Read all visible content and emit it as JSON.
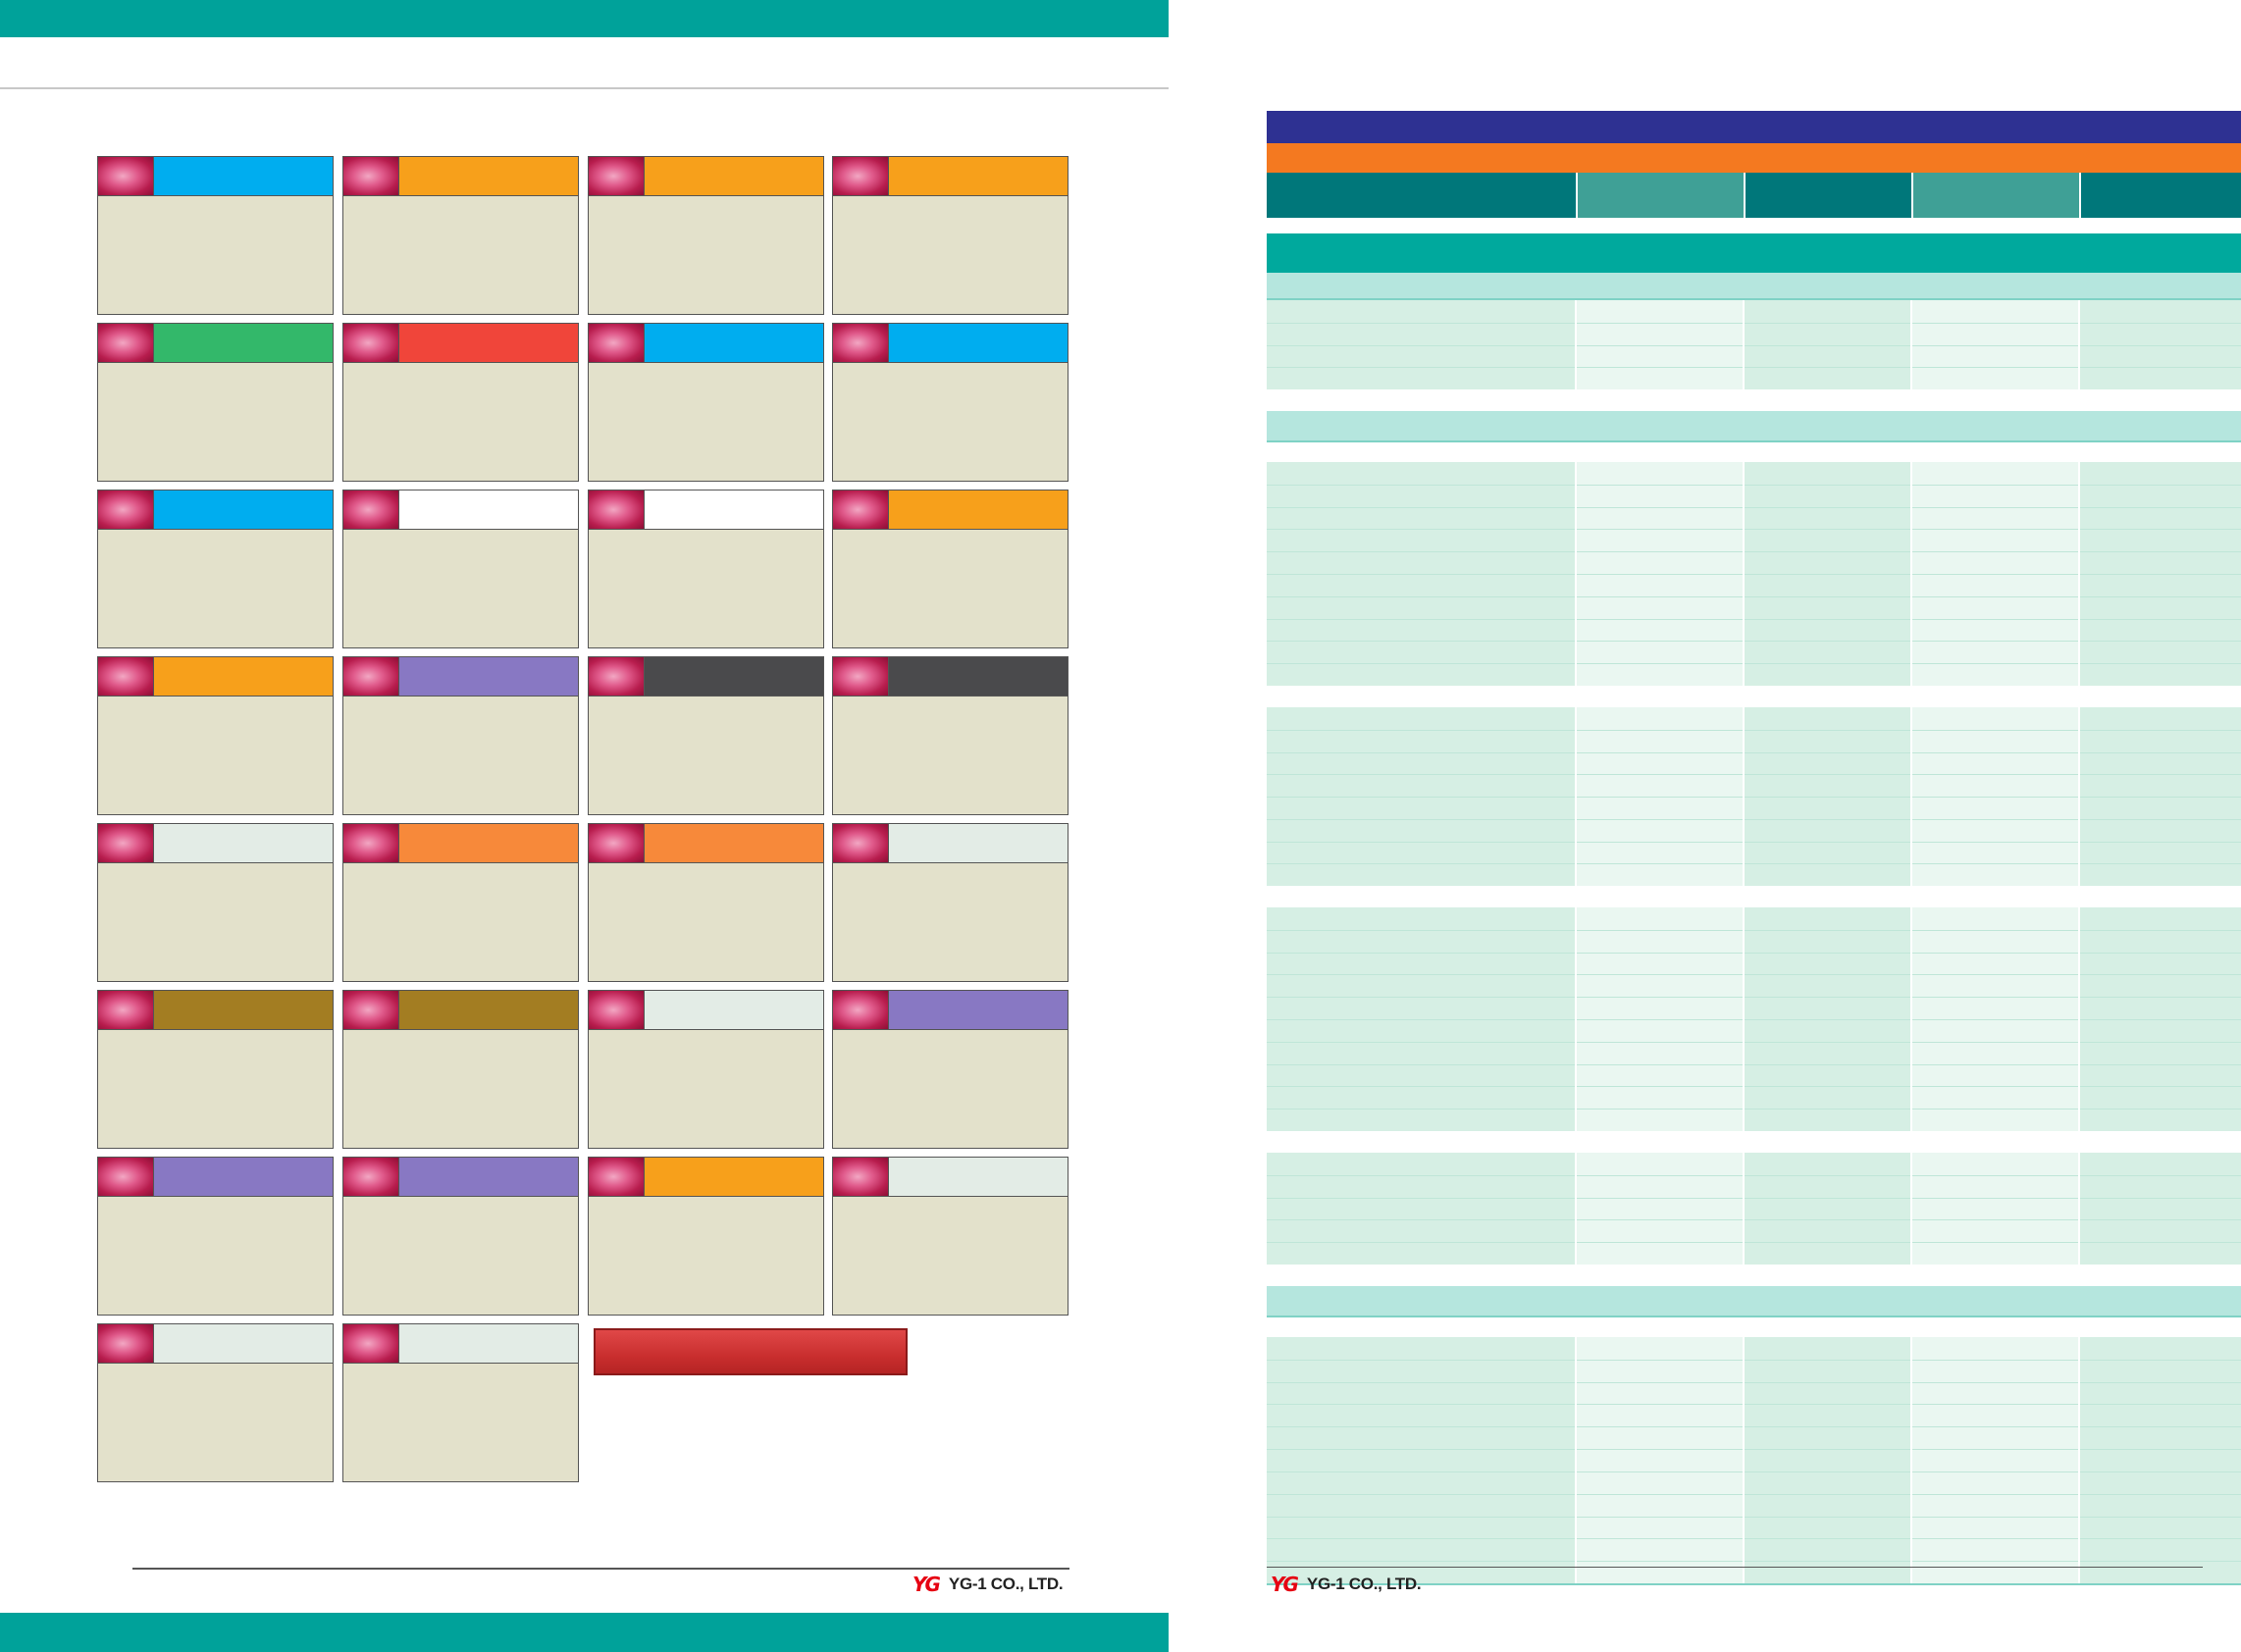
{
  "colors": {
    "page_bar": "#00a29a",
    "card_body": "#e3e1cb",
    "table_title": "#2e3192",
    "table_subtitle": "#f47920",
    "table_header_dark": "#00777a",
    "table_header_light": "#3fa096",
    "section_dark": "#00a99d",
    "section_light": "#b5e6de",
    "row_main": "#d6efe4",
    "row_alt": "#eaf7f1"
  },
  "cards": [
    {
      "bar_color": "#00adef"
    },
    {
      "bar_color": "#f7a01b"
    },
    {
      "bar_color": "#f7a01b"
    },
    {
      "bar_color": "#f7a01b"
    },
    {
      "bar_color": "#33b86a"
    },
    {
      "bar_color": "#f0453a"
    },
    {
      "bar_color": "#00adef"
    },
    {
      "bar_color": "#00adef"
    },
    {
      "bar_color": "#00adef"
    },
    {
      "bar_color": "#ffffff"
    },
    {
      "bar_color": "#ffffff"
    },
    {
      "bar_color": "#f7a01b"
    },
    {
      "bar_color": "#f7a01b"
    },
    {
      "bar_color": "#8878c3"
    },
    {
      "bar_color": "#4a4a4c"
    },
    {
      "bar_color": "#4a4a4c"
    },
    {
      "bar_color": "#e3ece6"
    },
    {
      "bar_color": "#f7893a"
    },
    {
      "bar_color": "#f7893a"
    },
    {
      "bar_color": "#e3ece6"
    },
    {
      "bar_color": "#a37d22"
    },
    {
      "bar_color": "#a37d22"
    },
    {
      "bar_color": "#e3ece6"
    },
    {
      "bar_color": "#8878c3"
    },
    {
      "bar_color": "#8878c3"
    },
    {
      "bar_color": "#8878c3"
    },
    {
      "bar_color": "#f7a01b"
    },
    {
      "bar_color": "#e3ece6"
    },
    {
      "bar_color": "#e3ece6"
    },
    {
      "bar_color": "#e3ece6"
    }
  ],
  "table": {
    "sections": [
      {
        "kind": "dark"
      },
      {
        "kind": "light"
      },
      {
        "kind": "rows",
        "count": 4
      },
      {
        "kind": "light"
      },
      {
        "kind": "rows",
        "count": 10
      },
      {
        "kind": "rows",
        "count": 8
      },
      {
        "kind": "rows",
        "count": 10
      },
      {
        "kind": "rows",
        "count": 5
      },
      {
        "kind": "light"
      },
      {
        "kind": "rows",
        "count": 11
      }
    ]
  },
  "footer": {
    "company_left": "YG-1 CO., LTD.",
    "company_right": "YG-1 CO., LTD.",
    "logo_mark": "YG"
  }
}
